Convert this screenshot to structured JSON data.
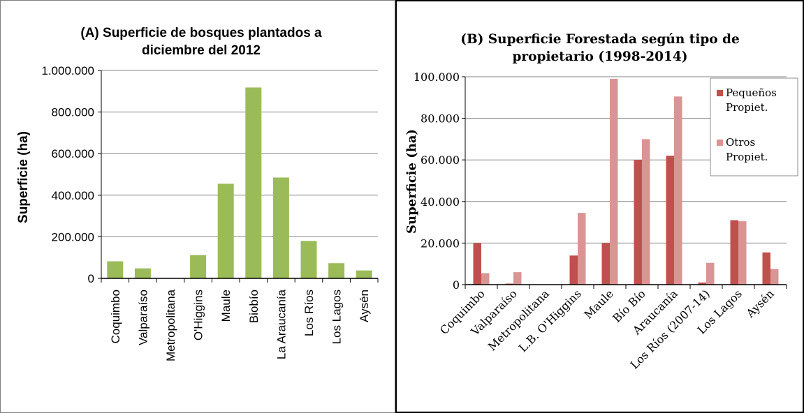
{
  "chart_data": [
    {
      "type": "bar",
      "title_line1": "(A) Superficie de bosques plantados a",
      "title_line2": "diciembre del 2012",
      "xlabel": "",
      "ylabel": "Superficie (ha)",
      "ylim": [
        0,
        1000000
      ],
      "yticks": [
        "0",
        "200.000",
        "400.000",
        "600.000",
        "800.000",
        "1.000.000"
      ],
      "grid": true,
      "color": "#9bbb59",
      "categories": [
        "Coquimbo",
        "Valparaíso",
        "Metropolitana",
        "O'Higgins",
        "Maule",
        "Biobío",
        "La Araucanía",
        "Los Ríos",
        "Los Lagos",
        "Aysén"
      ],
      "values": [
        82000,
        48000,
        0,
        112000,
        455000,
        918000,
        485000,
        180000,
        73000,
        38000
      ]
    },
    {
      "type": "bar",
      "title_line1": "(B) Superficie Forestada según tipo de",
      "title_line2": "propietario (1998-2014)",
      "xlabel": "",
      "ylabel": "Superficie (ha)",
      "ylim": [
        0,
        100000
      ],
      "yticks": [
        "0",
        "20.000",
        "40.000",
        "60.000",
        "80.000",
        "100.000"
      ],
      "grid": true,
      "legend_position": "top-right",
      "categories": [
        "Coquimbo",
        "Valparaíso",
        "Metropolitana",
        "L.B. O'Higgins",
        "Maule",
        "Bío Bío",
        "Araucanía",
        "Los Ríos (2007-14)",
        "Los Lagos",
        "Aysén"
      ],
      "series": [
        {
          "name_line1": "Pequeños",
          "name_line2": "Propiet.",
          "color": "#c0504d",
          "values": [
            20000,
            500,
            0,
            14000,
            20000,
            60000,
            62000,
            1000,
            31000,
            15500
          ]
        },
        {
          "name_line1": "Otros",
          "name_line2": "Propiet.",
          "color": "#d99594",
          "values": [
            5500,
            6000,
            0,
            34500,
            99000,
            70000,
            90500,
            10500,
            30500,
            7500
          ]
        }
      ]
    }
  ]
}
